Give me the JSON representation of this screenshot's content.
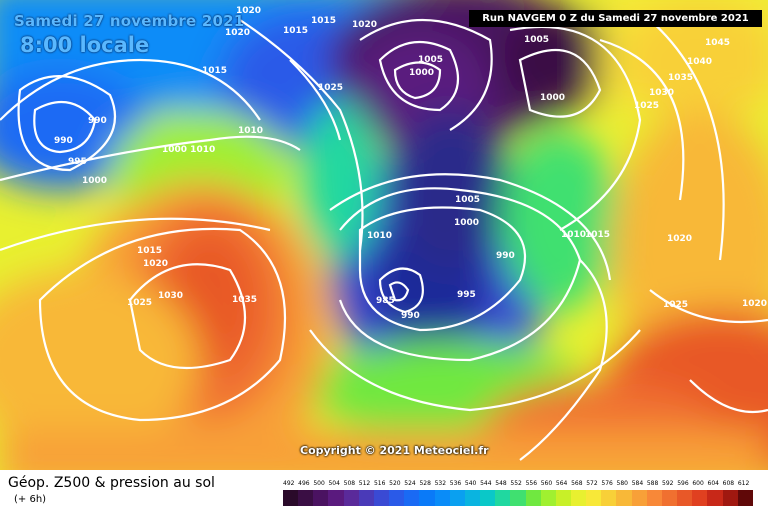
{
  "header": {
    "date": "Samedi 27 novembre 2021",
    "time": "8:00 locale",
    "run": "Run NAVGEM 0 Z du Samedi 27 novembre 2021"
  },
  "copyright": "Copyright © 2021 Meteociel.fr",
  "footer": {
    "title": "Géop. Z500 & pression au sol",
    "subtitle": "(+ 6h)"
  },
  "scale": {
    "values": [
      "492",
      "496",
      "500",
      "504",
      "508",
      "512",
      "516",
      "520",
      "524",
      "528",
      "532",
      "536",
      "540",
      "544",
      "548",
      "552",
      "556",
      "560",
      "564",
      "568",
      "572",
      "576",
      "580",
      "584",
      "588",
      "592",
      "596",
      "600",
      "604",
      "608",
      "612"
    ],
    "colors": [
      "#2a0a2a",
      "#3a0e44",
      "#4a1261",
      "#5a1a7e",
      "#5a2a9a",
      "#4a3ab8",
      "#3a4ad4",
      "#2a5ae8",
      "#1a6af4",
      "#0a7af8",
      "#0a8cf8",
      "#0aa0f0",
      "#0ab4e0",
      "#0ac8c8",
      "#20d8a0",
      "#40e070",
      "#70e840",
      "#a0f030",
      "#c8f028",
      "#e8f030",
      "#f8e838",
      "#f8d038",
      "#f8b838",
      "#f8a038",
      "#f88838",
      "#f07030",
      "#e85828",
      "#e04020",
      "#c82818",
      "#a01810",
      "#600808"
    ]
  },
  "isobars": [
    "1020",
    "1015",
    "1020",
    "1015",
    "1020",
    "1015",
    "1025",
    "1005",
    "1000",
    "1005",
    "1000",
    "1045",
    "1040",
    "1035",
    "1030",
    "1025",
    "990",
    "990",
    "995",
    "1000",
    "1010",
    "1010",
    "1010",
    "1005",
    "1000",
    "1010",
    "1015",
    "1020",
    "990",
    "985",
    "990",
    "995",
    "1020",
    "1030",
    "1035",
    "1025",
    "1025",
    "1020",
    "1000 1010",
    "1015",
    "1020"
  ]
}
